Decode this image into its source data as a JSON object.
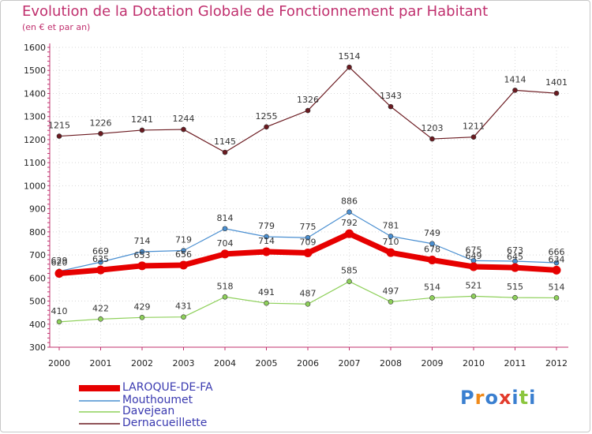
{
  "chart_data": {
    "type": "line",
    "title": "Evolution de la Dotation Globale de Fonctionnement par Habitant",
    "subtitle": "(en € et par an)",
    "x": [
      "2000",
      "2001",
      "2002",
      "2003",
      "2004",
      "2005",
      "2006",
      "2007",
      "2008",
      "2009",
      "2010",
      "2011",
      "2012"
    ],
    "ylim": [
      300,
      1600
    ],
    "yticks": [
      "300",
      "400",
      "500",
      "600",
      "700",
      "800",
      "900",
      "1000",
      "1100",
      "1200",
      "1300",
      "1400",
      "1500",
      "1600"
    ],
    "series": [
      {
        "name": "Dernacueillette",
        "color": "#6b1a20",
        "values": [
          1215,
          1226,
          1241,
          1244,
          1145,
          1255,
          1326,
          1514,
          1343,
          1203,
          1211,
          1414,
          1401
        ]
      },
      {
        "name": "Mouthoumet",
        "color": "#4a8fd1",
        "values": [
          629,
          669,
          714,
          719,
          814,
          779,
          775,
          886,
          781,
          749,
          675,
          673,
          666
        ]
      },
      {
        "name": "Davejean",
        "color": "#8ed05a",
        "values": [
          410,
          422,
          429,
          431,
          518,
          491,
          487,
          585,
          497,
          514,
          521,
          515,
          514
        ]
      },
      {
        "name": "LAROQUE-DE-FA",
        "color": "#e60000",
        "values": [
          620,
          635,
          653,
          656,
          704,
          714,
          709,
          792,
          710,
          678,
          649,
          645,
          634
        ]
      }
    ],
    "legend": [
      "LAROQUE-DE-FA",
      "Mouthoumet",
      "Davejean",
      "Dernacueillette"
    ]
  },
  "logo": {
    "letters": [
      "P",
      "r",
      "o",
      "x",
      "i",
      "t",
      "i"
    ],
    "colors": [
      "#3a7fd0",
      "#f08a1a",
      "#3a7fd0",
      "#e23b2c",
      "#3a7fd0",
      "#8cc63f",
      "#3a7fd0"
    ]
  }
}
